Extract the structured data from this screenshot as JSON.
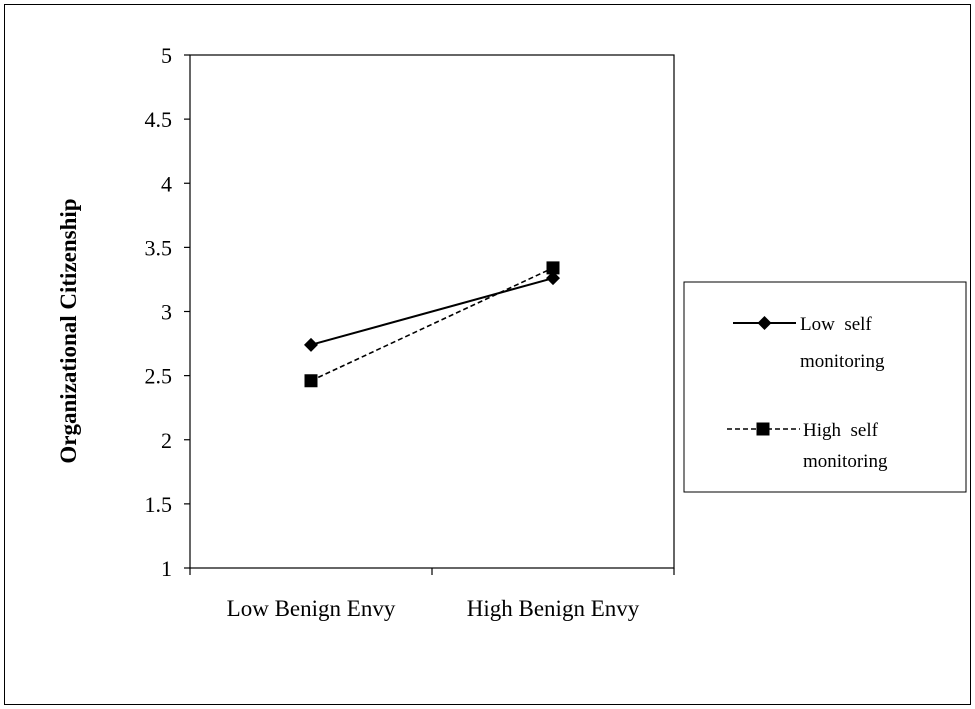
{
  "chart_data": {
    "type": "line",
    "title": "",
    "xlabel": "",
    "ylabel": "Organizational Citizenship",
    "categories": [
      "Low Benign Envy",
      "High Benign Envy"
    ],
    "ylim": [
      1,
      5
    ],
    "yticks": [
      "1",
      "1.5",
      "2",
      "2.5",
      "3",
      "3.5",
      "4",
      "4.5",
      "5"
    ],
    "grid": false,
    "legend_position": "right",
    "series": [
      {
        "name_line1": "Low  self",
        "name_line2": "monitoring",
        "values": [
          2.74,
          3.26
        ],
        "line_style": "solid",
        "marker": "diamond",
        "color": "#000000"
      },
      {
        "name_line1": "High  self",
        "name_line2": "monitoring",
        "values": [
          2.46,
          3.34
        ],
        "line_style": "dashed",
        "marker": "square",
        "color": "#000000"
      }
    ]
  }
}
